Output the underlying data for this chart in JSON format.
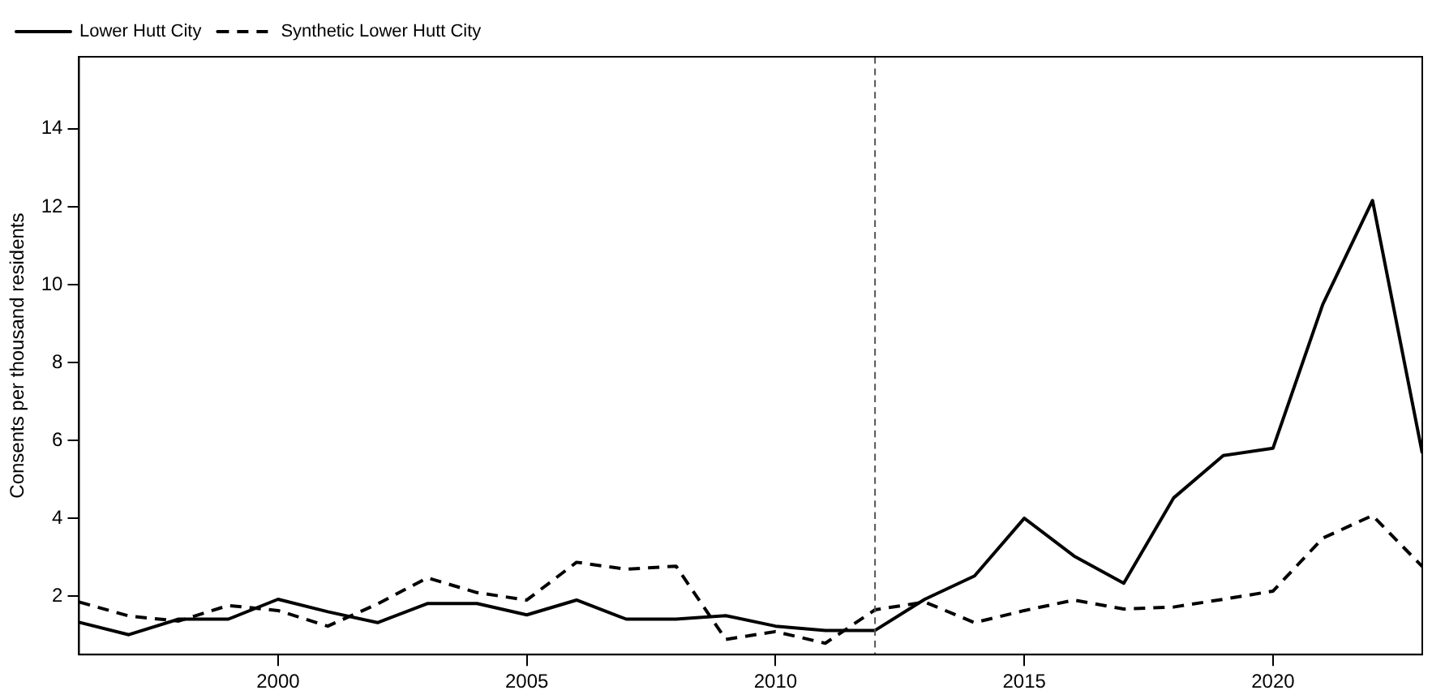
{
  "chart_data": {
    "type": "line",
    "ylabel": "Consents per thousand residents",
    "x": [
      1996,
      1997,
      1998,
      1999,
      2000,
      2001,
      2002,
      2003,
      2004,
      2005,
      2006,
      2007,
      2008,
      2009,
      2010,
      2011,
      2012,
      2013,
      2014,
      2015,
      2016,
      2017,
      2018,
      2019,
      2020,
      2021,
      2022,
      2023
    ],
    "series": [
      {
        "name": "Lower Hutt City",
        "color": "#000000",
        "line_style": "solid",
        "values": [
          1.33,
          1.01,
          1.41,
          1.41,
          1.92,
          1.6,
          1.32,
          1.81,
          1.81,
          1.52,
          1.9,
          1.41,
          1.41,
          1.5,
          1.23,
          1.12,
          1.12,
          1.92,
          2.52,
          4.0,
          3.03,
          2.33,
          4.52,
          5.61,
          5.8,
          9.49,
          12.16,
          5.67
        ]
      },
      {
        "name": "Synthetic Lower Hutt City",
        "color": "#000000",
        "line_style": "dashed",
        "values": [
          1.85,
          1.49,
          1.36,
          1.76,
          1.63,
          1.23,
          1.8,
          2.47,
          2.09,
          1.9,
          2.87,
          2.69,
          2.77,
          0.89,
          1.09,
          0.79,
          1.65,
          1.85,
          1.32,
          1.63,
          1.9,
          1.67,
          1.72,
          1.92,
          2.13,
          3.49,
          4.07,
          2.76
        ]
      }
    ],
    "xlim": [
      1996,
      2023
    ],
    "xticks": [
      2000,
      2005,
      2010,
      2015,
      2020
    ],
    "ylim": [
      0.5,
      15.85
    ],
    "yticks": [
      2,
      4,
      6,
      8,
      10,
      12,
      14
    ],
    "ref_lines": [
      {
        "axis": "x",
        "value": 2012,
        "color": "#555555",
        "line_style": "dashed"
      }
    ],
    "grid": false,
    "legend": "top left",
    "marker": "none"
  }
}
